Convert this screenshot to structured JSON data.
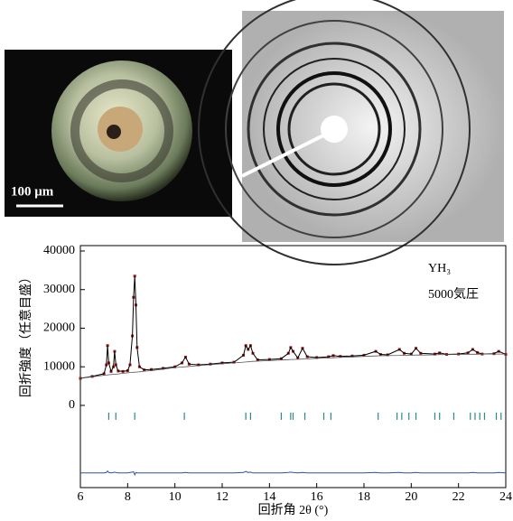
{
  "images": {
    "scale_label": "100 μm"
  },
  "chart_data": {
    "type": "line",
    "annotations": [
      "YH₃",
      "5000気圧"
    ],
    "xlabel": "回折角 2θ (°)",
    "ylabel": "回折強度（任意目盛）",
    "xlim": [
      6,
      24
    ],
    "xticks": [
      6,
      8,
      10,
      12,
      14,
      16,
      18,
      20,
      22,
      24
    ],
    "ylim": [
      -21300,
      41400
    ],
    "yticks": [
      0,
      10000,
      20000,
      30000,
      40000
    ],
    "x": [
      6.0,
      6.5,
      7.0,
      7.1,
      7.15,
      7.2,
      7.3,
      7.4,
      7.45,
      7.5,
      7.6,
      7.8,
      8.0,
      8.1,
      8.2,
      8.25,
      8.3,
      8.35,
      8.4,
      8.5,
      8.7,
      9.0,
      9.5,
      10.0,
      10.3,
      10.45,
      10.6,
      11.0,
      11.5,
      12.0,
      12.5,
      12.9,
      13.0,
      13.1,
      13.2,
      13.3,
      13.5,
      14.0,
      14.5,
      14.8,
      14.9,
      15.0,
      15.2,
      15.4,
      15.6,
      16.0,
      16.5,
      16.7,
      17.0,
      17.5,
      18.0,
      18.5,
      18.7,
      19.0,
      19.5,
      19.7,
      20.0,
      20.2,
      20.4,
      21.0,
      21.2,
      21.5,
      22.0,
      22.4,
      22.6,
      22.8,
      23.0,
      23.5,
      23.7,
      24.0
    ],
    "series": [
      {
        "style": "markers",
        "color": "#a01818",
        "values": [
          7000,
          7500,
          8200,
          10500,
          15500,
          11000,
          8800,
          10000,
          14000,
          10500,
          8900,
          8800,
          9000,
          10500,
          18000,
          28000,
          33500,
          26000,
          15000,
          10000,
          9200,
          9300,
          9600,
          10000,
          11000,
          12500,
          10700,
          10500,
          10700,
          11000,
          11200,
          13000,
          15500,
          14500,
          15500,
          13500,
          11800,
          11900,
          12100,
          13500,
          15000,
          14000,
          12300,
          14800,
          12600,
          12400,
          12600,
          12900,
          12700,
          12800,
          13000,
          14000,
          13200,
          13100,
          14500,
          13500,
          13300,
          14800,
          13500,
          13300,
          13600,
          13200,
          13300,
          13600,
          14500,
          13700,
          13300,
          13400,
          14000,
          13200
        ]
      },
      {
        "style": "line",
        "color": "#000000",
        "values": [
          7000,
          7500,
          8200,
          10500,
          15500,
          11000,
          8800,
          10000,
          14000,
          10500,
          8900,
          8800,
          9000,
          10500,
          18000,
          28000,
          33500,
          26000,
          15000,
          10000,
          9200,
          9300,
          9600,
          10000,
          11000,
          12500,
          10700,
          10500,
          10700,
          11000,
          11200,
          13000,
          15500,
          14500,
          15500,
          13500,
          11800,
          11900,
          12100,
          13500,
          15000,
          14000,
          12300,
          14800,
          12600,
          12400,
          12600,
          12900,
          12700,
          12800,
          13000,
          14000,
          13200,
          13100,
          14500,
          13500,
          13300,
          14800,
          13500,
          13300,
          13600,
          13200,
          13300,
          13600,
          14500,
          13700,
          13300,
          13400,
          14000,
          13200
        ]
      },
      {
        "style": "line",
        "color": "#555555",
        "values": [
          7000,
          7400,
          7800,
          7850,
          7900,
          7950,
          8000,
          8050,
          8080,
          8100,
          8150,
          8300,
          8450,
          8500,
          8550,
          8580,
          8600,
          8630,
          8650,
          8700,
          8850,
          9000,
          9400,
          9800,
          9950,
          10000,
          10100,
          10300,
          10550,
          10800,
          11000,
          11200,
          11250,
          11300,
          11350,
          11400,
          11450,
          11600,
          11750,
          11850,
          11900,
          11900,
          11950,
          12000,
          12050,
          12200,
          12300,
          12350,
          12450,
          12550,
          12700,
          12800,
          12850,
          12900,
          12950,
          13000,
          13000,
          13050,
          13050,
          13100,
          13150,
          13150,
          13200,
          13250,
          13250,
          13250,
          13300,
          13300,
          13300,
          13300
        ]
      },
      {
        "style": "line",
        "color": "#3050a0",
        "values": [
          -17500,
          -17500,
          -17500,
          -17400,
          -17000,
          -17400,
          -17500,
          -17400,
          -17300,
          -17400,
          -17500,
          -17500,
          -17500,
          -17400,
          -17300,
          -17200,
          -18000,
          -17400,
          -17500,
          -17500,
          -17500,
          -17500,
          -17500,
          -17500,
          -17500,
          -17400,
          -17500,
          -17500,
          -17500,
          -17500,
          -17500,
          -17400,
          -17100,
          -17400,
          -17300,
          -17500,
          -17500,
          -17500,
          -17500,
          -17400,
          -17300,
          -17400,
          -17500,
          -17400,
          -17500,
          -17500,
          -17500,
          -17500,
          -17500,
          -17500,
          -17500,
          -17400,
          -17500,
          -17500,
          -17400,
          -17500,
          -17500,
          -17400,
          -17500,
          -17500,
          -17500,
          -17500,
          -17500,
          -17500,
          -17400,
          -17500,
          -17500,
          -17500,
          -17400,
          -17500
        ]
      },
      {
        "style": "ticks",
        "color": "#2a8a8a",
        "x": [
          7.2,
          7.5,
          8.3,
          10.4,
          13.0,
          13.2,
          14.5,
          14.9,
          15.0,
          15.5,
          16.3,
          16.6,
          18.6,
          19.4,
          19.6,
          19.9,
          20.2,
          21.0,
          21.2,
          21.8,
          22.5,
          22.7,
          22.9,
          23.1,
          23.6,
          23.8
        ],
        "values": [
          -2800,
          -2800,
          -2800,
          -2800,
          -2800,
          -2800,
          -2800,
          -2800,
          -2800,
          -2800,
          -2800,
          -2800,
          -2800,
          -2800,
          -2800,
          -2800,
          -2800,
          -2800,
          -2800,
          -2800,
          -2800,
          -2800,
          -2800,
          -2800,
          -2800,
          -2800
        ]
      }
    ]
  }
}
